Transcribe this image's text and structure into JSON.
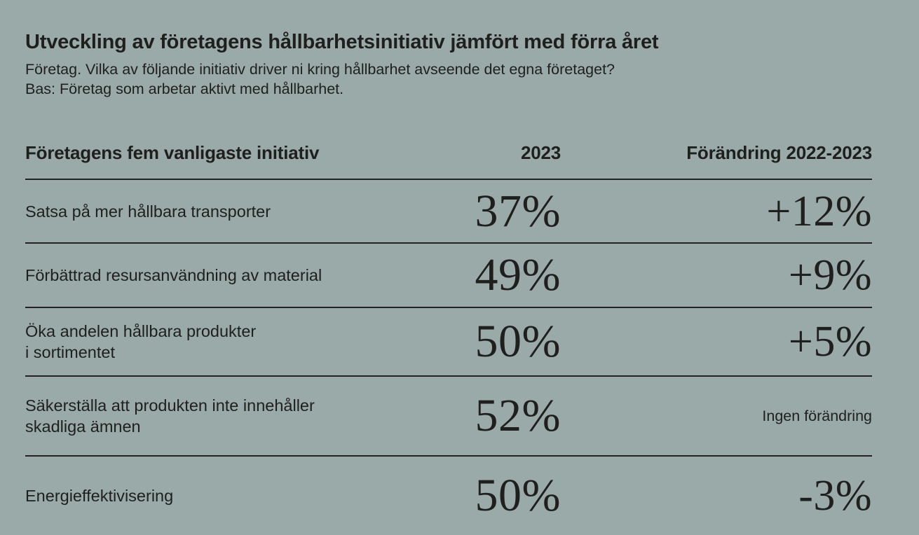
{
  "page": {
    "background_color": "#99aaa8",
    "text_color": "#1f1f1d",
    "title": "Utveckling av företagens hållbarhetsinitiativ jämfört med förra året",
    "subtitle_line1": "Företag. Vilka av följande initiativ driver ni kring hållbarhet avseende det egna företaget?",
    "subtitle_line2": "Bas: Företag som arbetar aktivt med hållbarhet."
  },
  "table": {
    "headers": {
      "initiative": "Företagens fem vanligaste initiativ",
      "year": "2023",
      "change": "Förändring 2022-2023"
    },
    "rows": [
      {
        "label": "Satsa på mer hållbara transporter",
        "value_2023": "37%",
        "change": "+12%"
      },
      {
        "label": "Förbättrad resursanvändning av material",
        "value_2023": "49%",
        "change": "+9%"
      },
      {
        "label": "Öka andelen hållbara produkter\ni sortimentet",
        "value_2023": "50%",
        "change": "+5%"
      },
      {
        "label": "Säkerställa att produkten inte innehåller\nskadliga ämnen",
        "value_2023": "52%",
        "change": "Ingen förändring"
      },
      {
        "label": "Energieffektivisering",
        "value_2023": "50%",
        "change": "-3%"
      }
    ]
  },
  "chart_data": {
    "type": "table",
    "title": "Utveckling av företagens hållbarhetsinitiativ jämfört med förra året",
    "subtitle": [
      "Företag. Vilka av följande initiativ driver ni kring hållbarhet avseende det egna företaget?",
      "Bas: Företag som arbetar aktivt med hållbarhet."
    ],
    "columns": [
      "Företagens fem vanligaste initiativ",
      "2023",
      "Förändring 2022-2023"
    ],
    "rows": [
      [
        "Satsa på mer hållbara transporter",
        "37%",
        "+12%"
      ],
      [
        "Förbättrad resursanvändning av material",
        "49%",
        "+9%"
      ],
      [
        "Öka andelen hållbara produkter i sortimentet",
        "50%",
        "+5%"
      ],
      [
        "Säkerställa att produkten inte innehåller skadliga ämnen",
        "52%",
        "Ingen förändring"
      ],
      [
        "Energieffektivisering",
        "50%",
        "-3%"
      ]
    ],
    "values_2023_numeric": [
      37,
      49,
      50,
      52,
      50
    ],
    "change_2022_2023_numeric": [
      12,
      9,
      5,
      0,
      -3
    ]
  }
}
